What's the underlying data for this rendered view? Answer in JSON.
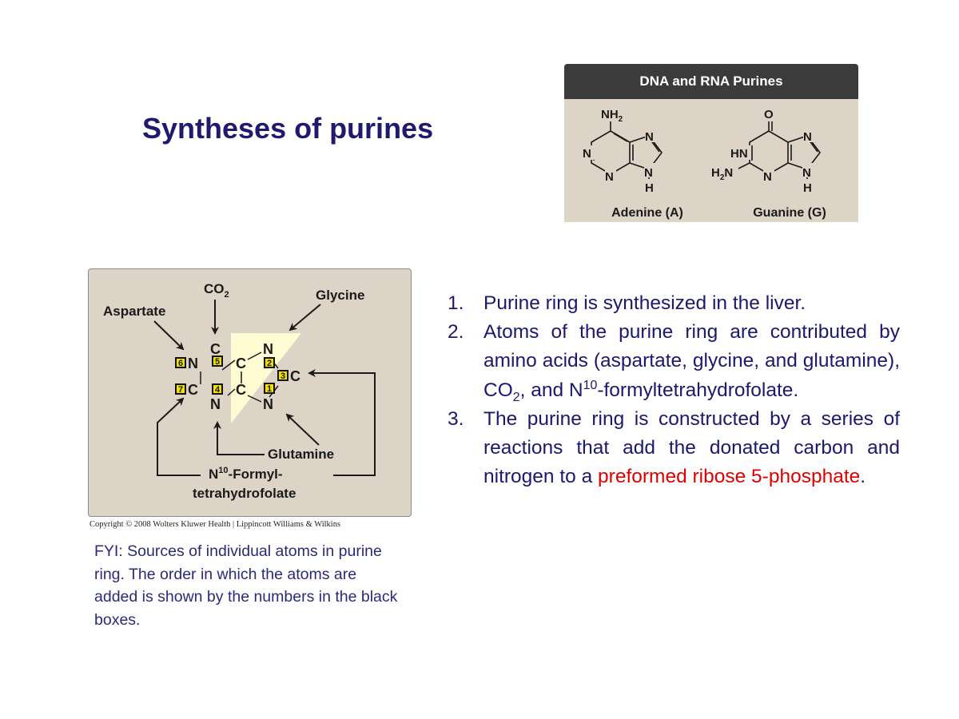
{
  "slide": {
    "title": "Syntheses of purines"
  },
  "purines_panel": {
    "header": "DNA and RNA Purines",
    "adenine": {
      "caption": "Adenine (A)",
      "labels": {
        "nh2": "NH",
        "nh2_sub": "2",
        "n1": "N",
        "n3": "N",
        "n7": "N",
        "n9": "N",
        "h9": "H"
      }
    },
    "guanine": {
      "caption": "Guanine (G)",
      "labels": {
        "o": "O",
        "hn": "HN",
        "h2n": "H",
        "h2n_sub": "2",
        "h2n_n": "N",
        "n3": "N",
        "n7": "N",
        "n9": "N",
        "h9": "H"
      }
    }
  },
  "ring_diagram": {
    "co2": "CO",
    "co2_sub": "2",
    "aspartate": "Aspartate",
    "glycine": "Glycine",
    "glutamine": "Glutamine",
    "formyl_sup": "10",
    "formyl_n": "N",
    "formyl_line1": "-Formyl-",
    "formyl_line2": "tetrahydrofolate",
    "atoms": {
      "c_top": "C",
      "n_left": "N",
      "c_mid_top": "C",
      "n_right_top": "N",
      "c_right": "C",
      "c_left": "C",
      "n_bottom": "N",
      "c_mid_bot": "C",
      "n_right_bot": "N"
    },
    "badges": [
      "1",
      "2",
      "3",
      "4",
      "5",
      "6",
      "7"
    ]
  },
  "copyright": "Copyright © 2008 Wolters Kluwer Health | Lippincott Williams & Wilkins",
  "fyi": "FYI: Sources of individual atoms in purine ring. The order in which the atoms are added is shown by the numbers in the black boxes.",
  "list": {
    "item1_num": "1.",
    "item1": "Purine ring is synthesized in the liver.",
    "item2_num": "2.",
    "item2_a": "Atoms of the purine ring are contributed by amino acids (aspartate, glycine, and glutamine), CO",
    "item2_sub": "2",
    "item2_b": ", and N",
    "item2_sup": "10",
    "item2_c": "-formyltetrahydrofolate.",
    "item3_num": "3.",
    "item3_a": "The purine ring is constructed by a series of reactions that add the donated carbon and nitrogen to a ",
    "item3_red": "preformed ribose 5-phosphate",
    "item3_b": "."
  },
  "colors": {
    "title": "#1f1a6e",
    "body_text": "#1b1870",
    "highlight": "#e10000",
    "panel_bg": "#ddd3c6",
    "badge": "#f2e000"
  }
}
